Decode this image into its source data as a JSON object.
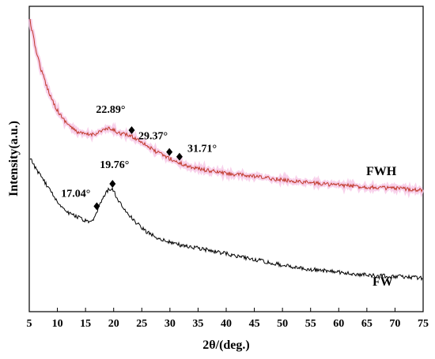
{
  "chart_data": {
    "type": "line",
    "title": "",
    "xlabel": "2θ/(deg.)",
    "ylabel": "Intensity(a.u.)",
    "xlim": [
      5,
      75
    ],
    "xticks": [
      5,
      10,
      15,
      20,
      25,
      30,
      35,
      40,
      45,
      50,
      55,
      60,
      65,
      70,
      75
    ],
    "yticks_shown": false,
    "grid": false,
    "series": [
      {
        "name": "FWH",
        "color": "#c0392b",
        "halo_color": "#f6c6e6",
        "x": [
          5,
          6,
          7,
          8,
          9,
          10,
          11,
          12,
          13,
          14,
          15,
          16,
          17,
          18,
          19,
          20,
          21,
          22,
          23,
          24,
          25,
          26,
          27,
          28,
          29,
          30,
          31,
          32,
          33,
          35,
          37,
          40,
          45,
          50,
          55,
          60,
          65,
          70,
          75
        ],
        "y": [
          1.0,
          0.9,
          0.82,
          0.76,
          0.71,
          0.67,
          0.64,
          0.62,
          0.6,
          0.59,
          0.585,
          0.585,
          0.59,
          0.6,
          0.605,
          0.6,
          0.59,
          0.585,
          0.58,
          0.57,
          0.56,
          0.545,
          0.53,
          0.52,
          0.51,
          0.5,
          0.49,
          0.482,
          0.475,
          0.465,
          0.457,
          0.448,
          0.437,
          0.425,
          0.415,
          0.407,
          0.4,
          0.395,
          0.39
        ]
      },
      {
        "name": "FW",
        "color": "#000000",
        "x": [
          5,
          5.5,
          6,
          7,
          8,
          9,
          10,
          11,
          12,
          13,
          14,
          15,
          15.5,
          16,
          16.5,
          17,
          17.5,
          18,
          18.5,
          19,
          19.5,
          20,
          20.5,
          21,
          22,
          23,
          24,
          25,
          26,
          27,
          28,
          30,
          32,
          35,
          40,
          45,
          50,
          55,
          60,
          65,
          70,
          75
        ],
        "y": [
          0.5,
          0.49,
          0.47,
          0.44,
          0.41,
          0.38,
          0.35,
          0.325,
          0.31,
          0.3,
          0.29,
          0.28,
          0.275,
          0.275,
          0.285,
          0.31,
          0.335,
          0.355,
          0.375,
          0.39,
          0.395,
          0.385,
          0.365,
          0.345,
          0.32,
          0.295,
          0.275,
          0.255,
          0.24,
          0.23,
          0.22,
          0.205,
          0.195,
          0.185,
          0.165,
          0.145,
          0.125,
          0.11,
          0.1,
          0.09,
          0.085,
          0.08
        ]
      }
    ],
    "peaks": [
      {
        "label": "22.89°",
        "x": 23.2,
        "series": "FWH"
      },
      {
        "label": "29.37°",
        "x": 29.9,
        "series": "FWH"
      },
      {
        "label": "31.71°",
        "x": 31.7,
        "series": "FWH"
      },
      {
        "label": "17.04°",
        "x": 17.0,
        "series": "FW"
      },
      {
        "label": "19.76°",
        "x": 19.8,
        "series": "FW"
      }
    ]
  }
}
